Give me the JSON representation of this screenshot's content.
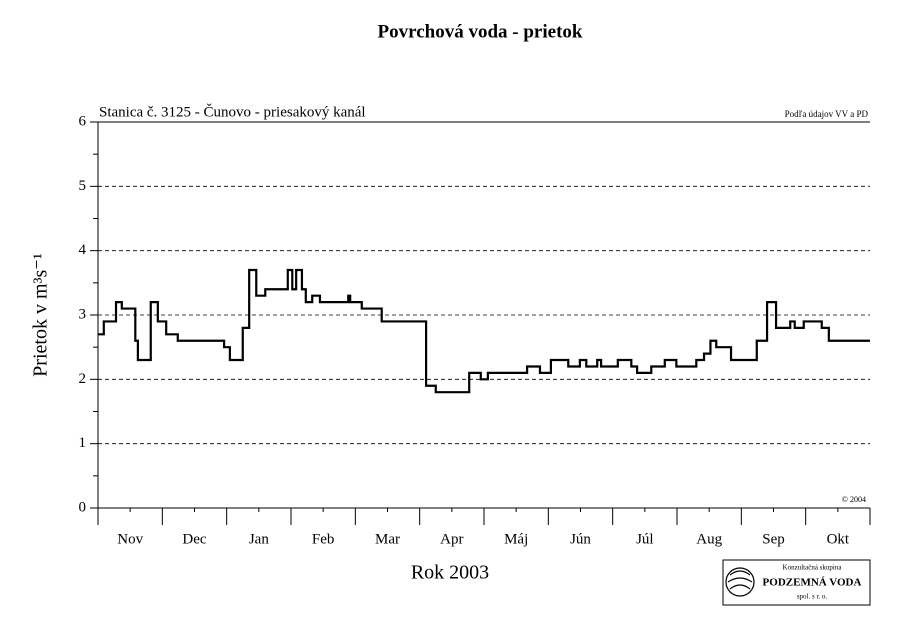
{
  "chart_data": {
    "type": "line",
    "title": "Povrchová voda - prietok",
    "subtitle": "Stanica č. 3125 - Čunovo - priesakový kanál",
    "source": "Podľa údajov VV a PD",
    "copyright": "© 2004",
    "y_label": "Prietok v m³s⁻¹",
    "x_label": "Rok 2003",
    "logo": {
      "line1": "Konzultačná skupina",
      "line2": "PODZEMNÁ VODA",
      "line3": "spol. s r. o."
    },
    "step": true,
    "grid": true,
    "xlim": [
      0,
      12
    ],
    "xticks": [
      {
        "value": 0.5,
        "label": "Nov"
      },
      {
        "value": 1.5,
        "label": "Dec"
      },
      {
        "value": 2.5,
        "label": "Jan"
      },
      {
        "value": 3.5,
        "label": "Feb"
      },
      {
        "value": 4.5,
        "label": "Mar"
      },
      {
        "value": 5.5,
        "label": "Apr"
      },
      {
        "value": 6.5,
        "label": "Máj"
      },
      {
        "value": 7.5,
        "label": "Jún"
      },
      {
        "value": 8.5,
        "label": "Júl"
      },
      {
        "value": 9.5,
        "label": "Aug"
      },
      {
        "value": 10.5,
        "label": "Sep"
      },
      {
        "value": 11.5,
        "label": "Okt"
      }
    ],
    "ylim": [
      0,
      6
    ],
    "yticks": [
      0,
      1,
      2,
      3,
      4,
      5,
      6
    ],
    "x": [
      0,
      0.09,
      0.28,
      0.37,
      0.58,
      0.62,
      0.82,
      0.93,
      1.06,
      1.24,
      1.96,
      2.05,
      2.25,
      2.35,
      2.46,
      2.6,
      2.95,
      3.02,
      3.08,
      3.17,
      3.23,
      3.33,
      3.45,
      3.89,
      3.92,
      4.1,
      4.41,
      5.1,
      5.25,
      5.77,
      5.95,
      6.06,
      6.67,
      6.87,
      7.04,
      7.31,
      7.49,
      7.59,
      7.76,
      7.82,
      8.08,
      8.29,
      8.38,
      8.6,
      8.81,
      8.99,
      9.3,
      9.42,
      9.52,
      9.61,
      9.84,
      10.24,
      10.4,
      10.54,
      10.76,
      10.83,
      10.97,
      11.25,
      11.36,
      12
    ],
    "series": [
      {
        "color": "#000000",
        "values": [
          2.7,
          2.9,
          3.2,
          3.1,
          2.6,
          2.3,
          3.2,
          2.9,
          2.7,
          2.6,
          2.5,
          2.3,
          2.8,
          3.7,
          3.3,
          3.4,
          3.7,
          3.4,
          3.7,
          3.4,
          3.2,
          3.3,
          3.2,
          3.3,
          3.2,
          3.1,
          2.9,
          1.9,
          1.8,
          2.1,
          2.0,
          2.1,
          2.2,
          2.1,
          2.3,
          2.2,
          2.3,
          2.2,
          2.3,
          2.2,
          2.3,
          2.2,
          2.1,
          2.2,
          2.3,
          2.2,
          2.3,
          2.4,
          2.6,
          2.5,
          2.3,
          2.6,
          3.2,
          2.8,
          2.9,
          2.8,
          2.9,
          2.8,
          2.6,
          2.6
        ]
      }
    ]
  }
}
